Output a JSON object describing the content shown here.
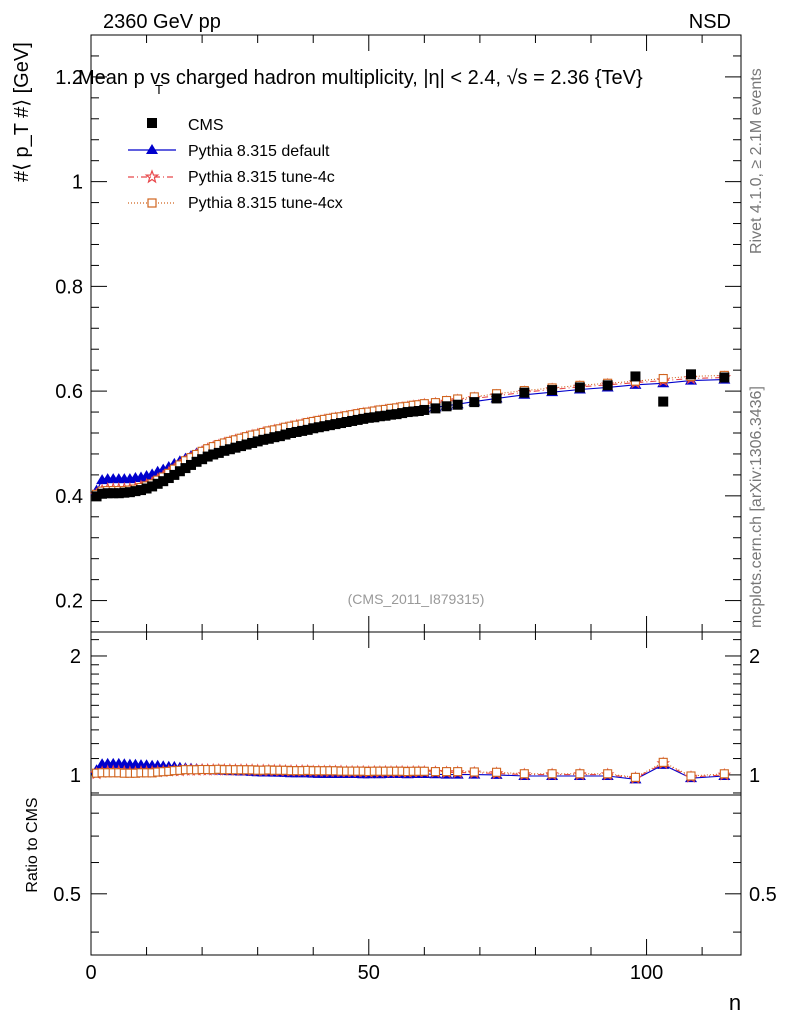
{
  "header": {
    "left": "2360 GeV pp",
    "right": "NSD",
    "title": "Mean p_T vs charged hadron multiplicity, |η| < 2.4, √s = 2.36 {TeV}",
    "title_display": "Mean p  vs charged hadron multiplicity, |η| < 2.4, √s = 2.36 {TeV}"
  },
  "side": {
    "rivet": "Rivet 4.1.0, ≥ 2.1M events",
    "mcplots": "mcplots.cern.ch [arXiv:1306.3436]"
  },
  "watermark": "(CMS_2011_I879315)",
  "colors": {
    "cms": "#000000",
    "default": "#0000cc",
    "tune4c": "#e8474a",
    "tune4cx": "#d0641e"
  },
  "chart_data": [
    {
      "type": "scatter",
      "panel": "main",
      "title": "Mean p_T vs charged hadron multiplicity",
      "xlabel": "n",
      "ylabel": "#⟨ p_T #⟩ [GeV]",
      "xlim": [
        0,
        117
      ],
      "ylim": [
        0.14,
        1.28
      ],
      "yticks": [
        0.2,
        0.4,
        0.6,
        0.8,
        1,
        1.2
      ],
      "ytick_labels": [
        "0.2",
        "0.4",
        "0.6",
        "0.8",
        "1",
        "1.2"
      ],
      "x": [
        1,
        2,
        3,
        4,
        5,
        6,
        7,
        8,
        9,
        10,
        11,
        12,
        13,
        14,
        15,
        16,
        17,
        18,
        19,
        20,
        21,
        22,
        23,
        24,
        25,
        26,
        27,
        28,
        29,
        30,
        31,
        32,
        33,
        34,
        35,
        36,
        37,
        38,
        39,
        40,
        41,
        42,
        43,
        44,
        45,
        46,
        47,
        48,
        49,
        50,
        51,
        52,
        53,
        54,
        55,
        56,
        57,
        58,
        59,
        60,
        62,
        64,
        66,
        69,
        73,
        78,
        83,
        88,
        93,
        98,
        103,
        108,
        114
      ],
      "series": [
        {
          "name": "CMS",
          "marker": "square",
          "values": [
            0.399,
            0.404,
            0.405,
            0.405,
            0.405,
            0.406,
            0.407,
            0.409,
            0.411,
            0.414,
            0.418,
            0.423,
            0.428,
            0.434,
            0.44,
            0.447,
            0.453,
            0.459,
            0.465,
            0.47,
            0.475,
            0.479,
            0.482,
            0.486,
            0.489,
            0.492,
            0.495,
            0.498,
            0.501,
            0.504,
            0.507,
            0.509,
            0.512,
            0.514,
            0.517,
            0.52,
            0.522,
            0.524,
            0.526,
            0.529,
            0.531,
            0.533,
            0.535,
            0.537,
            0.539,
            0.541,
            0.543,
            0.545,
            0.547,
            0.549,
            0.55,
            0.552,
            0.553,
            0.555,
            0.556,
            0.558,
            0.56,
            0.561,
            0.562,
            0.564,
            0.567,
            0.571,
            0.574,
            0.579,
            0.586,
            0.597,
            0.602,
            0.607,
            0.611,
            0.628,
            0.58,
            0.632,
            0.626
          ]
        },
        {
          "name": "Pythia 8.315 default",
          "marker": "triangle",
          "values": [
            0.41,
            0.43,
            0.432,
            0.432,
            0.432,
            0.432,
            0.432,
            0.434,
            0.435,
            0.438,
            0.441,
            0.446,
            0.45,
            0.455,
            0.461,
            0.466,
            0.471,
            0.476,
            0.481,
            0.485,
            0.489,
            0.492,
            0.495,
            0.498,
            0.5,
            0.503,
            0.505,
            0.508,
            0.51,
            0.512,
            0.514,
            0.517,
            0.519,
            0.521,
            0.523,
            0.525,
            0.527,
            0.529,
            0.531,
            0.533,
            0.534,
            0.536,
            0.538,
            0.54,
            0.542,
            0.544,
            0.546,
            0.548,
            0.549,
            0.551,
            0.553,
            0.554,
            0.556,
            0.558,
            0.559,
            0.561,
            0.562,
            0.564,
            0.565,
            0.567,
            0.569,
            0.572,
            0.575,
            0.58,
            0.586,
            0.593,
            0.598,
            0.603,
            0.607,
            0.612,
            0.615,
            0.62,
            0.622
          ]
        },
        {
          "name": "Pythia 8.315 tune-4c",
          "marker": "star",
          "values": [
            0.402,
            0.41,
            0.413,
            0.413,
            0.413,
            0.413,
            0.413,
            0.415,
            0.418,
            0.421,
            0.425,
            0.431,
            0.437,
            0.444,
            0.451,
            0.458,
            0.466,
            0.472,
            0.478,
            0.484,
            0.489,
            0.493,
            0.496,
            0.5,
            0.503,
            0.506,
            0.509,
            0.512,
            0.515,
            0.517,
            0.52,
            0.522,
            0.525,
            0.527,
            0.529,
            0.532,
            0.534,
            0.536,
            0.538,
            0.54,
            0.542,
            0.544,
            0.546,
            0.548,
            0.55,
            0.551,
            0.553,
            0.555,
            0.557,
            0.558,
            0.56,
            0.561,
            0.563,
            0.564,
            0.566,
            0.568,
            0.569,
            0.571,
            0.572,
            0.574,
            0.576,
            0.579,
            0.582,
            0.586,
            0.591,
            0.598,
            0.603,
            0.608,
            0.612,
            0.616,
            0.62,
            0.624,
            0.626
          ]
        },
        {
          "name": "Pythia 8.315 tune-4cx",
          "marker": "open-square",
          "values": [
            0.403,
            0.409,
            0.41,
            0.41,
            0.41,
            0.41,
            0.411,
            0.413,
            0.416,
            0.419,
            0.423,
            0.43,
            0.436,
            0.443,
            0.451,
            0.459,
            0.467,
            0.473,
            0.479,
            0.485,
            0.49,
            0.494,
            0.498,
            0.501,
            0.504,
            0.507,
            0.51,
            0.513,
            0.516,
            0.518,
            0.521,
            0.524,
            0.526,
            0.528,
            0.531,
            0.533,
            0.535,
            0.537,
            0.54,
            0.542,
            0.544,
            0.546,
            0.548,
            0.55,
            0.551,
            0.553,
            0.555,
            0.557,
            0.559,
            0.56,
            0.562,
            0.564,
            0.565,
            0.567,
            0.568,
            0.57,
            0.571,
            0.573,
            0.574,
            0.576,
            0.578,
            0.582,
            0.585,
            0.589,
            0.595,
            0.601,
            0.606,
            0.611,
            0.615,
            0.619,
            0.624,
            0.628,
            0.63
          ]
        }
      ]
    },
    {
      "type": "scatter",
      "panel": "ratio",
      "ylabel": "Ratio to CMS",
      "xlabel": "n",
      "xlim": [
        0,
        117
      ],
      "ylim": [
        0.35,
        2.3
      ],
      "yscale": "log",
      "yticks": [
        0.5,
        1,
        2
      ],
      "ytick_labels": [
        "0.5",
        "1",
        "2"
      ],
      "xticks": [
        0,
        50,
        100
      ],
      "xtick_labels": [
        "0",
        "50",
        "100"
      ],
      "reference": 1,
      "series_note": "ratio = MC / CMS, computed from main panel values"
    }
  ]
}
